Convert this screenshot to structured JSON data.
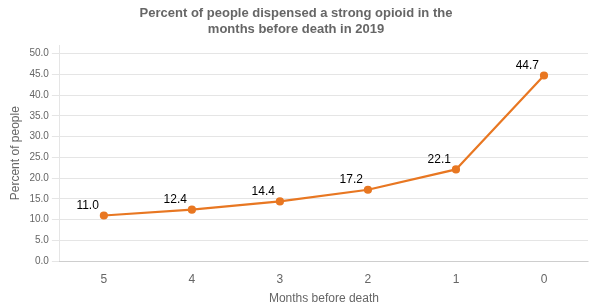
{
  "chart_data": {
    "type": "line",
    "title": "Percent of people dispensed a strong opioid in the\nmonths before death in 2019",
    "xlabel": "Months before death",
    "ylabel": "Percent of people",
    "x": [
      5,
      4,
      3,
      2,
      1,
      0
    ],
    "values": [
      11.0,
      12.4,
      14.4,
      17.2,
      22.1,
      44.7
    ],
    "value_labels": [
      "11.0",
      "12.4",
      "14.4",
      "17.2",
      "22.1",
      "44.7"
    ],
    "data_labels": true,
    "color": "#E87722",
    "xlim": [
      5.5,
      -0.5
    ],
    "xticks": [
      5,
      4,
      3,
      2,
      1,
      0
    ],
    "ylim": [
      0,
      52
    ],
    "yticks": [
      {
        "value": 0,
        "label": "0.0"
      },
      {
        "value": 5,
        "label": "5.0"
      },
      {
        "value": 10,
        "label": "10.0"
      },
      {
        "value": 15,
        "label": "15.0"
      },
      {
        "value": 20,
        "label": "20.0"
      },
      {
        "value": 25,
        "label": "25.0"
      },
      {
        "value": 30,
        "label": "30.0"
      },
      {
        "value": 35,
        "label": "35.0"
      },
      {
        "value": 40,
        "label": "40.0"
      },
      {
        "value": 45,
        "label": "45.0"
      },
      {
        "value": 50,
        "label": "50.0"
      }
    ],
    "grid": "y"
  }
}
